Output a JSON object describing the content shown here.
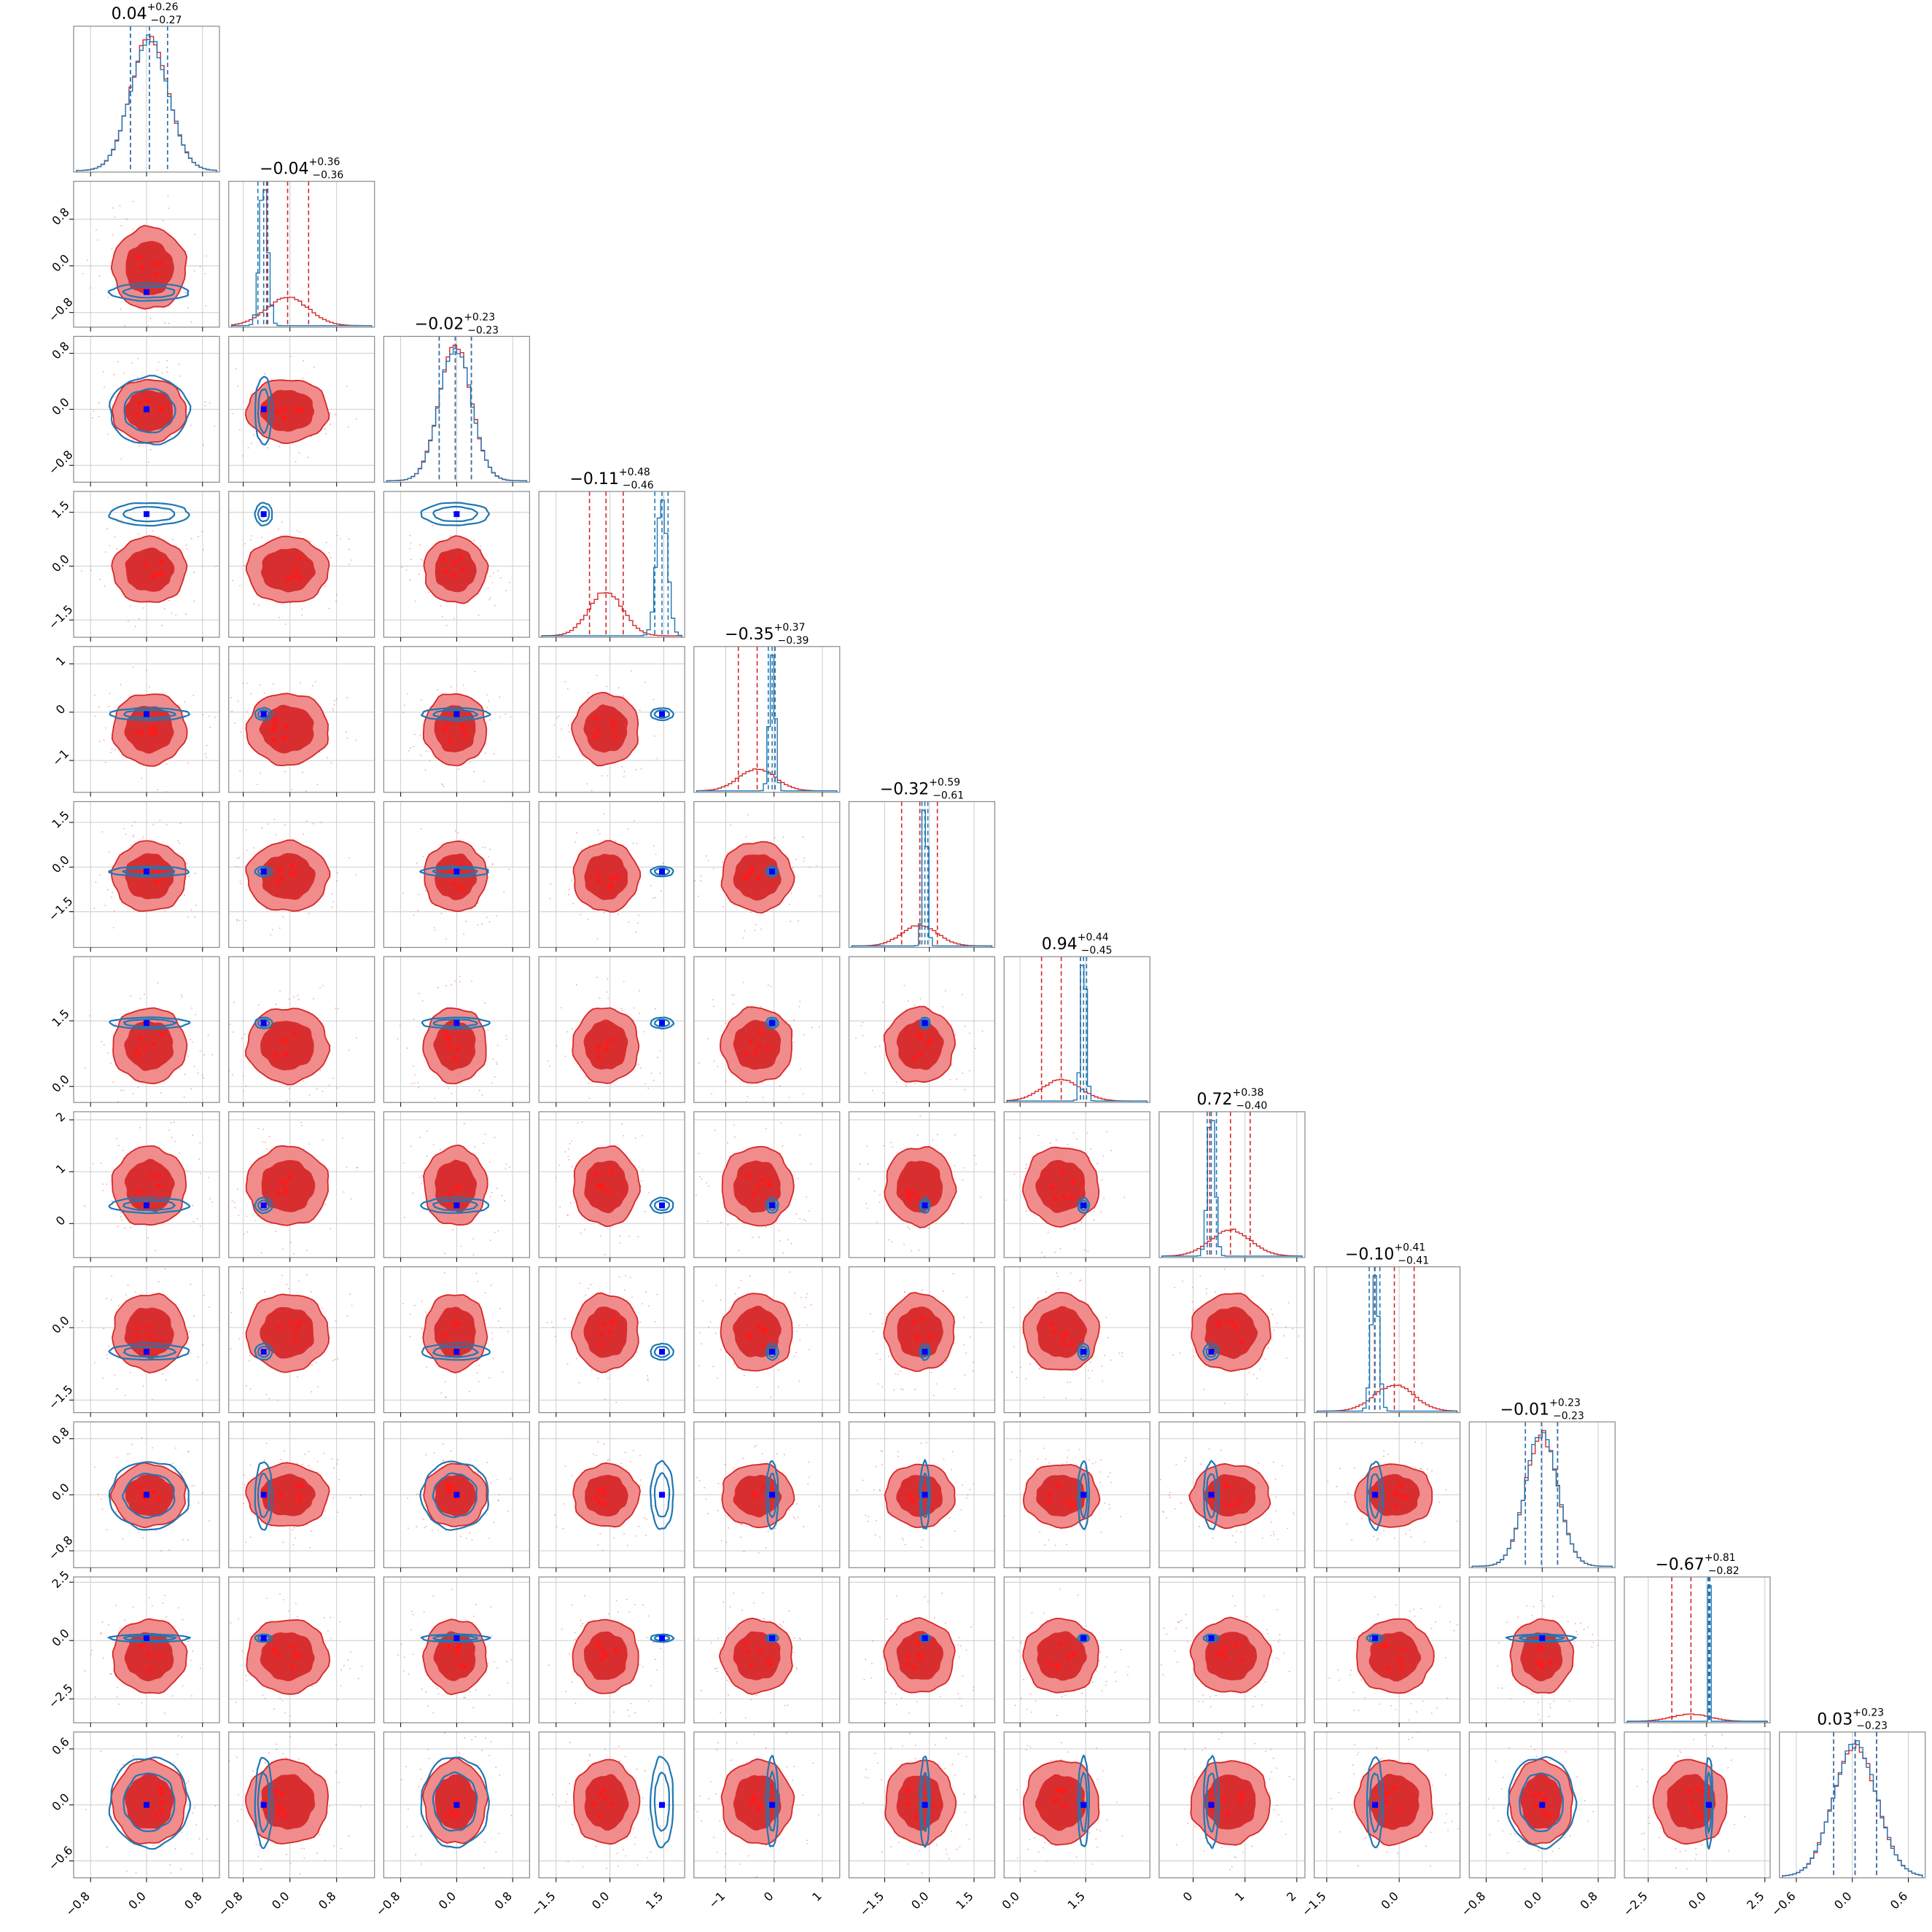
{
  "chart_data": {
    "type": "corner",
    "n_params": 12,
    "colors": {
      "red": "#d62728",
      "red_light": "#f08c8c",
      "red_mid": "#e8504f",
      "blue": "#1f77b4",
      "truth": "#0000ff",
      "grid": "#cccccc"
    },
    "titles": [
      {
        "median": "0.04",
        "plus": "+0.26",
        "minus": "−0.27"
      },
      {
        "median": "−0.04",
        "plus": "+0.36",
        "minus": "−0.36"
      },
      {
        "median": "−0.02",
        "plus": "+0.23",
        "minus": "−0.23"
      },
      {
        "median": "−0.11",
        "plus": "+0.48",
        "minus": "−0.46"
      },
      {
        "median": "−0.35",
        "plus": "+0.37",
        "minus": "−0.39"
      },
      {
        "median": "−0.32",
        "plus": "+0.59",
        "minus": "−0.61"
      },
      {
        "median": "0.94",
        "plus": "+0.44",
        "minus": "−0.45"
      },
      {
        "median": "0.72",
        "plus": "+0.38",
        "minus": "−0.40"
      },
      {
        "median": "−0.10",
        "plus": "+0.41",
        "minus": "−0.41"
      },
      {
        "median": "−0.01",
        "plus": "+0.23",
        "minus": "−0.23"
      },
      {
        "median": "−0.67",
        "plus": "+0.81",
        "minus": "−0.82"
      },
      {
        "median": "0.03",
        "plus": "+0.23",
        "minus": "−0.23"
      }
    ],
    "params": [
      {
        "range": [
          -1.0,
          1.0
        ],
        "ticks": [
          "−0.8",
          "0.0",
          "0.8"
        ],
        "tick_values": [
          -0.8,
          0.0,
          0.8
        ],
        "red_median": 0.04,
        "red_sigma": 0.27,
        "blue_mean": 0.04,
        "blue_sigma": 0.27,
        "truth": 0.0,
        "red_lines": [
          -0.23,
          0.04,
          0.3
        ],
        "blue_lines": [
          -0.23,
          0.04,
          0.3
        ]
      },
      {
        "range": [
          -1.0,
          1.4
        ],
        "ticks": [
          "−0.8",
          "0.0",
          "0.8"
        ],
        "tick_values": [
          -0.8,
          0.0,
          0.8
        ],
        "red_median": -0.04,
        "red_sigma": 0.36,
        "blue_mean": -0.45,
        "blue_sigma": 0.07,
        "truth": -0.45,
        "red_lines": [
          -0.4,
          -0.04,
          0.32
        ],
        "blue_lines": [
          -0.55,
          -0.45,
          -0.38
        ]
      },
      {
        "range": [
          -1.0,
          1.0
        ],
        "ticks": [
          "−0.8",
          "0.0",
          "0.8"
        ],
        "tick_values": [
          -0.8,
          0.0,
          0.8
        ],
        "red_median": -0.02,
        "red_sigma": 0.23,
        "blue_mean": -0.02,
        "blue_sigma": 0.23,
        "truth": 0.0,
        "red_lines": [
          -0.25,
          -0.02,
          0.21
        ],
        "blue_lines": [
          -0.25,
          -0.02,
          0.21
        ]
      },
      {
        "range": [
          -1.9,
          2.0
        ],
        "ticks": [
          "−1.5",
          "0.0",
          "1.5"
        ],
        "tick_values": [
          -1.5,
          0.0,
          1.5
        ],
        "red_median": -0.11,
        "red_sigma": 0.47,
        "blue_mean": 1.45,
        "blue_sigma": 0.15,
        "truth": 1.45,
        "red_lines": [
          -0.57,
          -0.11,
          0.37
        ],
        "blue_lines": [
          1.25,
          1.45,
          1.62
        ]
      },
      {
        "range": [
          -1.6,
          1.3
        ],
        "ticks": [
          "−1",
          "0",
          "1"
        ],
        "tick_values": [
          -1,
          0,
          1
        ],
        "red_median": -0.35,
        "red_sigma": 0.38,
        "blue_mean": -0.04,
        "blue_sigma": 0.06,
        "truth": -0.04,
        "red_lines": [
          -0.74,
          -0.35,
          0.02
        ],
        "blue_lines": [
          -0.12,
          -0.04,
          0.02
        ]
      },
      {
        "range": [
          -2.6,
          2.1
        ],
        "ticks": [
          "−1.5",
          "0.0",
          "1.5"
        ],
        "tick_values": [
          -1.5,
          0.0,
          1.5
        ],
        "red_median": -0.32,
        "red_sigma": 0.6,
        "blue_mean": -0.15,
        "blue_sigma": 0.08,
        "truth": -0.15,
        "red_lines": [
          -0.93,
          -0.32,
          0.27
        ],
        "blue_lines": [
          -0.25,
          -0.15,
          -0.05
        ]
      },
      {
        "range": [
          -0.3,
          2.9
        ],
        "ticks": [
          "0.0",
          "1.5"
        ],
        "tick_values": [
          0.0,
          1.5
        ],
        "red_median": 0.94,
        "red_sigma": 0.44,
        "blue_mean": 1.45,
        "blue_sigma": 0.06,
        "truth": 1.45,
        "red_lines": [
          0.49,
          0.94,
          1.38
        ],
        "blue_lines": [
          1.38,
          1.45,
          1.52
        ]
      },
      {
        "range": [
          -0.6,
          2.1
        ],
        "ticks": [
          "0",
          "1",
          "2"
        ],
        "tick_values": [
          0,
          1,
          2
        ],
        "red_median": 0.72,
        "red_sigma": 0.39,
        "blue_mean": 0.35,
        "blue_sigma": 0.07,
        "truth": 0.35,
        "red_lines": [
          0.32,
          0.72,
          1.1
        ],
        "blue_lines": [
          0.27,
          0.35,
          0.45
        ]
      },
      {
        "range": [
          -1.7,
          1.2
        ],
        "ticks": [
          "−1.5",
          "0.0"
        ],
        "tick_values": [
          -1.5,
          0.0
        ],
        "red_median": -0.1,
        "red_sigma": 0.41,
        "blue_mean": -0.5,
        "blue_sigma": 0.08,
        "truth": -0.5,
        "red_lines": [
          -0.51,
          -0.1,
          0.31
        ],
        "blue_lines": [
          -0.62,
          -0.5,
          -0.4
        ]
      },
      {
        "range": [
          -1.0,
          1.0
        ],
        "ticks": [
          "−0.8",
          "0.0",
          "0.8"
        ],
        "tick_values": [
          -0.8,
          0.0,
          0.8
        ],
        "red_median": -0.01,
        "red_sigma": 0.23,
        "blue_mean": -0.01,
        "blue_sigma": 0.23,
        "truth": 0.0,
        "red_lines": [
          -0.24,
          -0.01,
          0.22
        ],
        "blue_lines": [
          -0.24,
          -0.01,
          0.22
        ]
      },
      {
        "range": [
          -3.4,
          2.6
        ],
        "ticks": [
          "−2.5",
          "0.0",
          "2.5"
        ],
        "tick_values": [
          -2.5,
          0.0,
          2.5
        ],
        "red_median": -0.67,
        "red_sigma": 0.81,
        "blue_mean": 0.1,
        "blue_sigma": 0.03,
        "truth": 0.1,
        "red_lines": [
          -1.49,
          -0.67,
          0.14
        ],
        "blue_lines": [
          0.06,
          0.1,
          0.14
        ]
      },
      {
        "range": [
          -0.75,
          0.75
        ],
        "ticks": [
          "−0.6",
          "0.0",
          "0.6"
        ],
        "tick_values": [
          -0.6,
          0.0,
          0.6
        ],
        "red_median": 0.03,
        "red_sigma": 0.23,
        "blue_mean": 0.03,
        "blue_sigma": 0.23,
        "truth": 0.0,
        "red_lines": [
          -0.2,
          0.03,
          0.26
        ],
        "blue_lines": [
          -0.2,
          0.03,
          0.26
        ]
      }
    ]
  }
}
